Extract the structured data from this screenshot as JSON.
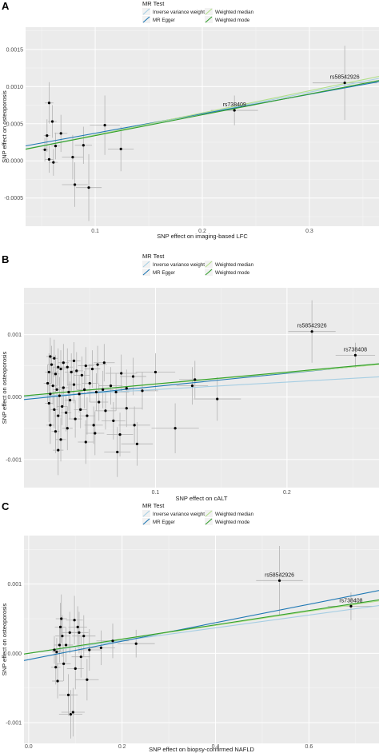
{
  "legend": {
    "title": "MR Test",
    "entries": [
      {
        "name": "Inverse variance weighted",
        "color": "#a6cee3"
      },
      {
        "name": "MR Egger",
        "color": "#1f78b4"
      },
      {
        "name": "Weighted median",
        "color": "#b2df8a"
      },
      {
        "name": "Weighted mode",
        "color": "#33a02c"
      }
    ]
  },
  "chart_data": [
    {
      "panel": "A",
      "type": "scatter",
      "xlabel": "SNP effect on imaging-based LFC",
      "ylabel": "SNP effect on osteoporosis",
      "xlim": [
        0.035,
        0.365
      ],
      "ylim": [
        -0.00088,
        0.0018
      ],
      "xticks": [
        0.1,
        0.2,
        0.3
      ],
      "xtick_labels": [
        "0.1",
        "0.2",
        "0.3"
      ],
      "yticks": [
        -0.0005,
        0.0,
        0.0005,
        0.001,
        0.0015
      ],
      "ytick_labels": [
        "-0.0005",
        "0.0000",
        "0.0005",
        "0.0010",
        "0.0015"
      ],
      "points": [
        {
          "x": 0.057,
          "y": 0.00078,
          "xerr": 0.004,
          "yerr": 0.00028
        },
        {
          "x": 0.06,
          "y": 0.00053,
          "xerr": 0.004,
          "yerr": 0.00022
        },
        {
          "x": 0.055,
          "y": 0.00034,
          "xerr": 0.003,
          "yerr": 0.00022
        },
        {
          "x": 0.063,
          "y": 0.0002,
          "xerr": 0.004,
          "yerr": 0.00018
        },
        {
          "x": 0.053,
          "y": 0.00015,
          "xerr": 0.003,
          "yerr": 0.00016
        },
        {
          "x": 0.057,
          "y": 2e-05,
          "xerr": 0.004,
          "yerr": 0.00018
        },
        {
          "x": 0.061,
          "y": -2e-05,
          "xerr": 0.004,
          "yerr": 0.00018
        },
        {
          "x": 0.068,
          "y": 0.00037,
          "xerr": 0.006,
          "yerr": 0.00025
        },
        {
          "x": 0.079,
          "y": 5e-05,
          "xerr": 0.01,
          "yerr": 0.0003
        },
        {
          "x": 0.081,
          "y": -0.00032,
          "xerr": 0.012,
          "yerr": 0.0003
        },
        {
          "x": 0.089,
          "y": 0.00021,
          "xerr": 0.008,
          "yerr": 0.00025
        },
        {
          "x": 0.094,
          "y": -0.00036,
          "xerr": 0.012,
          "yerr": 0.00045
        },
        {
          "x": 0.109,
          "y": 0.00048,
          "xerr": 0.014,
          "yerr": 0.0004
        },
        {
          "x": 0.124,
          "y": 0.00016,
          "xerr": 0.012,
          "yerr": 0.0003
        },
        {
          "x": 0.23,
          "y": 0.00068,
          "xerr": 0.022,
          "yerr": 0.0002
        },
        {
          "x": 0.333,
          "y": 0.00105,
          "xerr": 0.03,
          "yerr": 0.0005
        }
      ],
      "labels": [
        {
          "text": "rs738409",
          "x": 0.23,
          "y": 0.00068
        },
        {
          "text": "rs58542926",
          "x": 0.333,
          "y": 0.00105
        }
      ],
      "lines": [
        {
          "name": "Inverse variance weighted",
          "intercept": 6e-05,
          "slope": 0.00288
        },
        {
          "name": "MR Egger",
          "intercept": 0.00011,
          "slope": 0.00262
        },
        {
          "name": "Weighted median",
          "intercept": 5e-05,
          "slope": 0.00298
        },
        {
          "name": "Weighted mode",
          "intercept": 6e-05,
          "slope": 0.0028
        }
      ]
    },
    {
      "panel": "B",
      "type": "scatter",
      "xlabel": "SNP effect on cALT",
      "ylabel": "SNP effect on osteoporosis",
      "xlim": [
        0.0,
        0.27
      ],
      "ylim": [
        -0.00145,
        0.00175
      ],
      "xticks": [
        0.1,
        0.2
      ],
      "xtick_labels": [
        "0.1",
        "0.2"
      ],
      "yticks": [
        -0.001,
        0.0,
        0.001
      ],
      "ytick_labels": [
        "-0.001",
        "0.000",
        "0.001"
      ],
      "points": [
        {
          "x": 0.02,
          "y": 0.00065,
          "xerr": 0.003,
          "yerr": 0.0003
        },
        {
          "x": 0.023,
          "y": 0.00062,
          "xerr": 0.003,
          "yerr": 0.0003
        },
        {
          "x": 0.021,
          "y": 0.00052,
          "xerr": 0.003,
          "yerr": 0.0003
        },
        {
          "x": 0.026,
          "y": 0.00048,
          "xerr": 0.004,
          "yerr": 0.0003
        },
        {
          "x": 0.019,
          "y": 0.0004,
          "xerr": 0.003,
          "yerr": 0.0003
        },
        {
          "x": 0.024,
          "y": 0.00037,
          "xerr": 0.003,
          "yerr": 0.0003
        },
        {
          "x": 0.028,
          "y": 0.00045,
          "xerr": 0.004,
          "yerr": 0.0003
        },
        {
          "x": 0.03,
          "y": 0.00055,
          "xerr": 0.004,
          "yerr": 0.0003
        },
        {
          "x": 0.033,
          "y": 0.00048,
          "xerr": 0.004,
          "yerr": 0.0003
        },
        {
          "x": 0.036,
          "y": 0.0004,
          "xerr": 0.005,
          "yerr": 0.0003
        },
        {
          "x": 0.038,
          "y": 0.00058,
          "xerr": 0.005,
          "yerr": 0.0003
        },
        {
          "x": 0.04,
          "y": 0.00042,
          "xerr": 0.005,
          "yerr": 0.0003
        },
        {
          "x": 0.044,
          "y": 0.00035,
          "xerr": 0.006,
          "yerr": 0.0003
        },
        {
          "x": 0.047,
          "y": 0.0005,
          "xerr": 0.006,
          "yerr": 0.0003
        },
        {
          "x": 0.052,
          "y": 0.00045,
          "xerr": 0.006,
          "yerr": 0.0003
        },
        {
          "x": 0.056,
          "y": 0.00052,
          "xerr": 0.007,
          "yerr": 0.0003
        },
        {
          "x": 0.061,
          "y": 0.00055,
          "xerr": 0.008,
          "yerr": 0.0003
        },
        {
          "x": 0.074,
          "y": 0.00038,
          "xerr": 0.012,
          "yerr": 0.0003
        },
        {
          "x": 0.083,
          "y": 0.00033,
          "xerr": 0.01,
          "yerr": 0.0003
        },
        {
          "x": 0.1,
          "y": 0.0004,
          "xerr": 0.015,
          "yerr": 0.0003
        },
        {
          "x": 0.018,
          "y": 0.00022,
          "xerr": 0.003,
          "yerr": 0.0003
        },
        {
          "x": 0.022,
          "y": 0.00018,
          "xerr": 0.003,
          "yerr": 0.0003
        },
        {
          "x": 0.025,
          "y": 0.00012,
          "xerr": 0.003,
          "yerr": 0.0003
        },
        {
          "x": 0.02,
          "y": 5e-05,
          "xerr": 0.003,
          "yerr": 0.0003
        },
        {
          "x": 0.027,
          "y": 2e-05,
          "xerr": 0.004,
          "yerr": 0.0003
        },
        {
          "x": 0.03,
          "y": 0.00015,
          "xerr": 0.004,
          "yerr": 0.0003
        },
        {
          "x": 0.034,
          "y": 8e-05,
          "xerr": 0.004,
          "yerr": 0.0003
        },
        {
          "x": 0.038,
          "y": 0.0002,
          "xerr": 0.005,
          "yerr": 0.0003
        },
        {
          "x": 0.042,
          "y": 5e-05,
          "xerr": 0.005,
          "yerr": 0.0003
        },
        {
          "x": 0.046,
          "y": 0.00012,
          "xerr": 0.006,
          "yerr": 0.0003
        },
        {
          "x": 0.05,
          "y": 0.00022,
          "xerr": 0.006,
          "yerr": 0.0003
        },
        {
          "x": 0.055,
          "y": 8e-05,
          "xerr": 0.007,
          "yerr": 0.0003
        },
        {
          "x": 0.06,
          "y": 0.00012,
          "xerr": 0.008,
          "yerr": 0.0003
        },
        {
          "x": 0.066,
          "y": 0.00018,
          "xerr": 0.009,
          "yerr": 0.0003
        },
        {
          "x": 0.07,
          "y": 8e-05,
          "xerr": 0.01,
          "yerr": 0.0003
        },
        {
          "x": 0.078,
          "y": 0.00014,
          "xerr": 0.012,
          "yerr": 0.0003
        },
        {
          "x": 0.09,
          "y": 0.0001,
          "xerr": 0.012,
          "yerr": 0.0003
        },
        {
          "x": 0.019,
          "y": -0.0001,
          "xerr": 0.003,
          "yerr": 0.0003
        },
        {
          "x": 0.023,
          "y": -0.0002,
          "xerr": 0.003,
          "yerr": 0.0003
        },
        {
          "x": 0.026,
          "y": -0.0003,
          "xerr": 0.003,
          "yerr": 0.0003
        },
        {
          "x": 0.029,
          "y": -0.00015,
          "xerr": 0.004,
          "yerr": 0.0003
        },
        {
          "x": 0.032,
          "y": -0.00025,
          "xerr": 0.004,
          "yerr": 0.0003
        },
        {
          "x": 0.035,
          "y": -5e-05,
          "xerr": 0.004,
          "yerr": 0.0003
        },
        {
          "x": 0.039,
          "y": -0.00035,
          "xerr": 0.005,
          "yerr": 0.0003
        },
        {
          "x": 0.043,
          "y": -0.0002,
          "xerr": 0.005,
          "yerr": 0.0003
        },
        {
          "x": 0.048,
          "y": -0.0003,
          "xerr": 0.006,
          "yerr": 0.0003
        },
        {
          "x": 0.053,
          "y": -0.00045,
          "xerr": 0.007,
          "yerr": 0.0003
        },
        {
          "x": 0.057,
          "y": -8e-05,
          "xerr": 0.007,
          "yerr": 0.0003
        },
        {
          "x": 0.062,
          "y": -0.00022,
          "xerr": 0.008,
          "yerr": 0.0003
        },
        {
          "x": 0.068,
          "y": -0.00038,
          "xerr": 0.009,
          "yerr": 0.0003
        },
        {
          "x": 0.073,
          "y": -0.0006,
          "xerr": 0.01,
          "yerr": 0.00035
        },
        {
          "x": 0.078,
          "y": -0.00018,
          "xerr": 0.012,
          "yerr": 0.0003
        },
        {
          "x": 0.084,
          "y": -0.00045,
          "xerr": 0.012,
          "yerr": 0.0003
        },
        {
          "x": 0.024,
          "y": -0.00055,
          "xerr": 0.003,
          "yerr": 0.00035
        },
        {
          "x": 0.028,
          "y": -0.00068,
          "xerr": 0.004,
          "yerr": 0.00035
        },
        {
          "x": 0.033,
          "y": -0.0005,
          "xerr": 0.004,
          "yerr": 0.00035
        },
        {
          "x": 0.047,
          "y": -0.00072,
          "xerr": 0.006,
          "yerr": 0.00035
        },
        {
          "x": 0.054,
          "y": -0.00058,
          "xerr": 0.007,
          "yerr": 0.00035
        },
        {
          "x": 0.02,
          "y": -0.00045,
          "xerr": 0.003,
          "yerr": 0.0003
        },
        {
          "x": 0.026,
          "y": -0.00085,
          "xerr": 0.004,
          "yerr": 0.0004
        },
        {
          "x": 0.071,
          "y": -0.00088,
          "xerr": 0.01,
          "yerr": 0.0004
        },
        {
          "x": 0.086,
          "y": -0.00075,
          "xerr": 0.012,
          "yerr": 0.00035
        },
        {
          "x": 0.13,
          "y": 0.00028,
          "xerr": 0.012,
          "yerr": 0.0003
        },
        {
          "x": 0.115,
          "y": -0.0005,
          "xerr": 0.018,
          "yerr": 0.0004
        },
        {
          "x": 0.147,
          "y": -3e-05,
          "xerr": 0.018,
          "yerr": 0.00035
        },
        {
          "x": 0.128,
          "y": 0.00018,
          "xerr": 0.012,
          "yerr": 0.0003
        },
        {
          "x": 0.219,
          "y": 0.00105,
          "xerr": 0.018,
          "yerr": 0.0005
        },
        {
          "x": 0.252,
          "y": 0.00067,
          "xerr": 0.015,
          "yerr": 0.0002
        }
      ],
      "labels": [
        {
          "text": "rs58542926",
          "x": 0.219,
          "y": 0.00105
        },
        {
          "text": "rs738408",
          "x": 0.252,
          "y": 0.00067
        }
      ],
      "lines": [
        {
          "name": "Inverse variance weighted",
          "intercept": 0.0,
          "slope": 0.0012
        },
        {
          "name": "MR Egger",
          "intercept": -4e-05,
          "slope": 0.0021
        },
        {
          "name": "Weighted median",
          "intercept": 2e-05,
          "slope": 0.00185
        },
        {
          "name": "Weighted mode",
          "intercept": 2e-05,
          "slope": 0.0019
        }
      ]
    },
    {
      "panel": "C",
      "type": "scatter",
      "xlabel": "SNP effect on biopsy-confirmed NAFLD",
      "ylabel": "SNP effect on osteoporosis",
      "xlim": [
        -0.01,
        0.75
      ],
      "ylim": [
        -0.0013,
        0.0017
      ],
      "xticks": [
        0.0,
        0.2,
        0.4,
        0.6
      ],
      "xtick_labels": [
        "0.0",
        "0.2",
        "0.4",
        "0.6"
      ],
      "yticks": [
        -0.001,
        0.0,
        0.001
      ],
      "ytick_labels": [
        "-0.001",
        "0.000",
        "0.001"
      ],
      "points": [
        {
          "x": 0.055,
          "y": 5e-05,
          "xerr": 0.01,
          "yerr": 0.0002
        },
        {
          "x": 0.06,
          "y": 2e-05,
          "xerr": 0.01,
          "yerr": 0.0002
        },
        {
          "x": 0.058,
          "y": -0.0002,
          "xerr": 0.01,
          "yerr": 0.00025
        },
        {
          "x": 0.062,
          "y": -0.0004,
          "xerr": 0.012,
          "yerr": 0.00025
        },
        {
          "x": 0.066,
          "y": 0.00012,
          "xerr": 0.012,
          "yerr": 0.00025
        },
        {
          "x": 0.068,
          "y": 0.00038,
          "xerr": 0.012,
          "yerr": 0.00035
        },
        {
          "x": 0.07,
          "y": 0.0005,
          "xerr": 0.012,
          "yerr": 0.00035
        },
        {
          "x": 0.072,
          "y": 0.00025,
          "xerr": 0.015,
          "yerr": 0.0003
        },
        {
          "x": 0.075,
          "y": -0.00015,
          "xerr": 0.015,
          "yerr": 0.00025
        },
        {
          "x": 0.08,
          "y": 0.00012,
          "xerr": 0.015,
          "yerr": 0.00025
        },
        {
          "x": 0.085,
          "y": -0.0006,
          "xerr": 0.02,
          "yerr": 0.0003
        },
        {
          "x": 0.088,
          "y": 0.0003,
          "xerr": 0.018,
          "yerr": 0.0003
        },
        {
          "x": 0.09,
          "y": -0.00088,
          "xerr": 0.025,
          "yerr": 0.00035
        },
        {
          "x": 0.095,
          "y": -0.00085,
          "xerr": 0.025,
          "yerr": 0.00035
        },
        {
          "x": 0.098,
          "y": 0.00048,
          "xerr": 0.018,
          "yerr": 0.00035
        },
        {
          "x": 0.1,
          "y": -0.00022,
          "xerr": 0.018,
          "yerr": 0.0003
        },
        {
          "x": 0.105,
          "y": 0.00038,
          "xerr": 0.02,
          "yerr": 0.0003
        },
        {
          "x": 0.108,
          "y": 0.0003,
          "xerr": 0.02,
          "yerr": 0.0003
        },
        {
          "x": 0.112,
          "y": -5e-05,
          "xerr": 0.02,
          "yerr": 0.0003
        },
        {
          "x": 0.118,
          "y": 0.00025,
          "xerr": 0.025,
          "yerr": 0.0003
        },
        {
          "x": 0.125,
          "y": -0.00038,
          "xerr": 0.025,
          "yerr": 0.0003
        },
        {
          "x": 0.13,
          "y": 5e-05,
          "xerr": 0.025,
          "yerr": 0.0003
        },
        {
          "x": 0.155,
          "y": 8e-05,
          "xerr": 0.03,
          "yerr": 0.00025
        },
        {
          "x": 0.18,
          "y": 0.00018,
          "xerr": 0.035,
          "yerr": 0.00025
        },
        {
          "x": 0.23,
          "y": 0.00014,
          "xerr": 0.04,
          "yerr": 0.0002
        },
        {
          "x": 0.537,
          "y": 0.00105,
          "xerr": 0.05,
          "yerr": 0.0005
        },
        {
          "x": 0.69,
          "y": 0.00068,
          "xerr": 0.05,
          "yerr": 0.0002
        }
      ],
      "labels": [
        {
          "text": "rs58542926",
          "x": 0.537,
          "y": 0.00105
        },
        {
          "text": "rs738408",
          "x": 0.69,
          "y": 0.00068
        }
      ],
      "lines": [
        {
          "name": "Inverse variance weighted",
          "intercept": 0.0,
          "slope": 0.00092
        },
        {
          "name": "MR Egger",
          "intercept": -9e-05,
          "slope": 0.00133
        },
        {
          "name": "Weighted median",
          "intercept": 0.0,
          "slope": 0.00101
        },
        {
          "name": "Weighted mode",
          "intercept": 0.0,
          "slope": 0.00103
        }
      ]
    }
  ]
}
